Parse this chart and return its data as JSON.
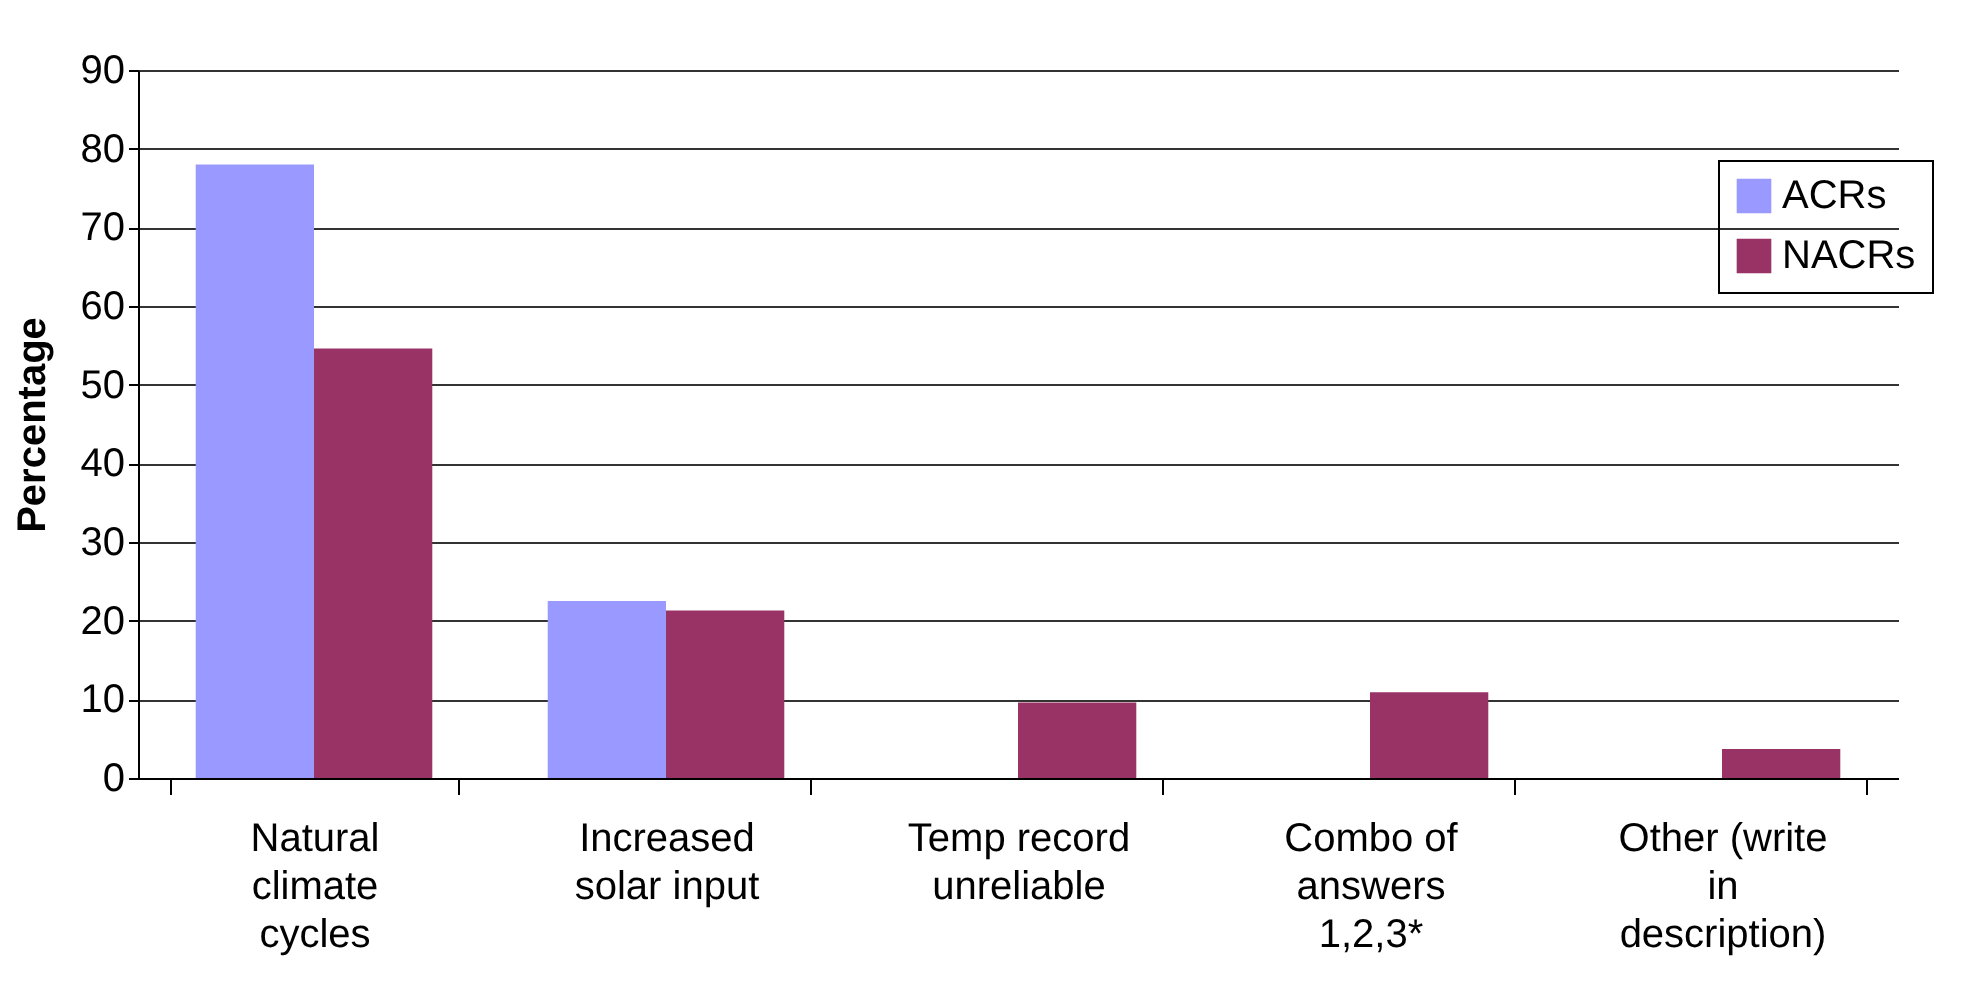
{
  "chart_data": {
    "type": "bar",
    "ylabel": "Percentage",
    "categories": [
      "Natural climate cycles",
      "Increased solar input",
      "Temp record unreliable",
      "Combo of answers 1,2,3*",
      "Other (write in description)"
    ],
    "series": [
      {
        "name": "ACRs",
        "color": "#9999ff",
        "values": [
          78,
          22.5,
          0,
          0,
          0
        ]
      },
      {
        "name": "NACRs",
        "color": "#993366",
        "values": [
          54.6,
          21.3,
          9.6,
          10.9,
          3.7
        ]
      }
    ],
    "ylim": [
      0,
      90
    ],
    "yticks": [
      0,
      10,
      20,
      30,
      40,
      50,
      60,
      70,
      80,
      90
    ],
    "grid": "y",
    "legend": "top right"
  }
}
